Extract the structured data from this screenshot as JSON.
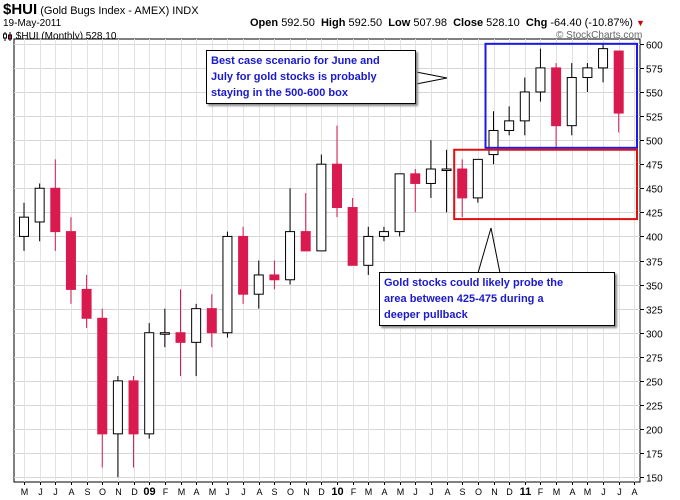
{
  "header": {
    "ticker": "$HUI",
    "name": "(Gold Bugs Index - AMEX) INDX",
    "date": "19-May-2011",
    "series_legend": "$HUI (Monthly) 528.10",
    "open_label": "Open",
    "open": "592.50",
    "high_label": "High",
    "high": "592.50",
    "low_label": "Low",
    "low": "507.98",
    "close_label": "Close",
    "close": "528.10",
    "chg_label": "Chg",
    "chg": "-64.40 (-10.87%)",
    "watermark": "© StockCharts.com"
  },
  "colors": {
    "up": "#ffffff",
    "down": "#d81a4e",
    "outline": "#000000",
    "box_upper": "#1a1aee",
    "box_lower": "#e01010",
    "callout_text": "#1a1acc"
  },
  "annotations": {
    "callout_1": [
      "Best case scenario for June and",
      "July for gold stocks is probably",
      "staying in the 500-600 box"
    ],
    "callout_2": [
      "Gold stocks could likely probe the",
      "area between 425-475 during a",
      "deeper pullback"
    ]
  },
  "chart_data": {
    "type": "candlestick",
    "title": "$HUI (Gold Bugs Index - AMEX) INDX",
    "period": "Monthly",
    "y_axis": {
      "position": "right",
      "ylim": [
        145,
        605
      ],
      "ticks": [
        150,
        175,
        200,
        225,
        250,
        275,
        300,
        325,
        350,
        375,
        400,
        425,
        450,
        475,
        500,
        525,
        550,
        575,
        600
      ]
    },
    "x_tick_labels": [
      "M",
      "J",
      "J",
      "A",
      "S",
      "O",
      "N",
      "D",
      "09",
      "F",
      "M",
      "A",
      "M",
      "J",
      "J",
      "A",
      "S",
      "O",
      "N",
      "D",
      "10",
      "F",
      "M",
      "A",
      "M",
      "J",
      "J",
      "A",
      "S",
      "O",
      "N",
      "D",
      "11",
      "F",
      "M",
      "A",
      "M",
      "J",
      "J",
      "A"
    ],
    "grid": true,
    "candles": [
      {
        "o": 400,
        "h": 435,
        "l": 385,
        "c": 420
      },
      {
        "o": 415,
        "h": 455,
        "l": 395,
        "c": 450
      },
      {
        "o": 450,
        "h": 480,
        "l": 385,
        "c": 405
      },
      {
        "o": 405,
        "h": 420,
        "l": 330,
        "c": 345
      },
      {
        "o": 345,
        "h": 360,
        "l": 305,
        "c": 315
      },
      {
        "o": 315,
        "h": 325,
        "l": 160,
        "c": 195
      },
      {
        "o": 195,
        "h": 255,
        "l": 150,
        "c": 250
      },
      {
        "o": 250,
        "h": 255,
        "l": 160,
        "c": 195
      },
      {
        "o": 195,
        "h": 310,
        "l": 190,
        "c": 300
      },
      {
        "o": 300,
        "h": 325,
        "l": 285,
        "c": 300
      },
      {
        "o": 300,
        "h": 345,
        "l": 255,
        "c": 290
      },
      {
        "o": 290,
        "h": 330,
        "l": 255,
        "c": 325
      },
      {
        "o": 325,
        "h": 340,
        "l": 285,
        "c": 300
      },
      {
        "o": 300,
        "h": 405,
        "l": 295,
        "c": 400
      },
      {
        "o": 400,
        "h": 410,
        "l": 330,
        "c": 340
      },
      {
        "o": 340,
        "h": 375,
        "l": 325,
        "c": 360
      },
      {
        "o": 360,
        "h": 375,
        "l": 345,
        "c": 355
      },
      {
        "o": 355,
        "h": 450,
        "l": 350,
        "c": 405
      },
      {
        "o": 405,
        "h": 445,
        "l": 385,
        "c": 385
      },
      {
        "o": 385,
        "h": 485,
        "l": 385,
        "c": 475
      },
      {
        "o": 475,
        "h": 515,
        "l": 420,
        "c": 430
      },
      {
        "o": 430,
        "h": 440,
        "l": 370,
        "c": 370
      },
      {
        "o": 370,
        "h": 410,
        "l": 360,
        "c": 400
      },
      {
        "o": 400,
        "h": 410,
        "l": 395,
        "c": 405
      },
      {
        "o": 405,
        "h": 465,
        "l": 400,
        "c": 465
      },
      {
        "o": 465,
        "h": 470,
        "l": 425,
        "c": 455
      },
      {
        "o": 455,
        "h": 500,
        "l": 440,
        "c": 470
      },
      {
        "o": 470,
        "h": 490,
        "l": 425,
        "c": 470
      },
      {
        "o": 470,
        "h": 480,
        "l": 420,
        "c": 440
      },
      {
        "o": 440,
        "h": 480,
        "l": 435,
        "c": 480
      },
      {
        "o": 485,
        "h": 530,
        "l": 475,
        "c": 510
      },
      {
        "o": 510,
        "h": 535,
        "l": 505,
        "c": 520
      },
      {
        "o": 520,
        "h": 565,
        "l": 505,
        "c": 550
      },
      {
        "o": 550,
        "h": 595,
        "l": 540,
        "c": 575
      },
      {
        "o": 575,
        "h": 580,
        "l": 490,
        "c": 515
      },
      {
        "o": 515,
        "h": 580,
        "l": 505,
        "c": 565
      },
      {
        "o": 565,
        "h": 580,
        "l": 550,
        "c": 575
      },
      {
        "o": 575,
        "h": 600,
        "l": 560,
        "c": 595
      },
      {
        "o": 592.5,
        "h": 592.5,
        "l": 507.98,
        "c": 528.1
      }
    ],
    "boxes": [
      {
        "label": "500-600 box",
        "y_low": 492,
        "y_high": 600,
        "from_candle": 30,
        "to": "right-edge"
      },
      {
        "label": "425-475 area",
        "y_low": 418,
        "y_high": 490,
        "from_candle": 28,
        "to": "right-edge"
      }
    ]
  }
}
